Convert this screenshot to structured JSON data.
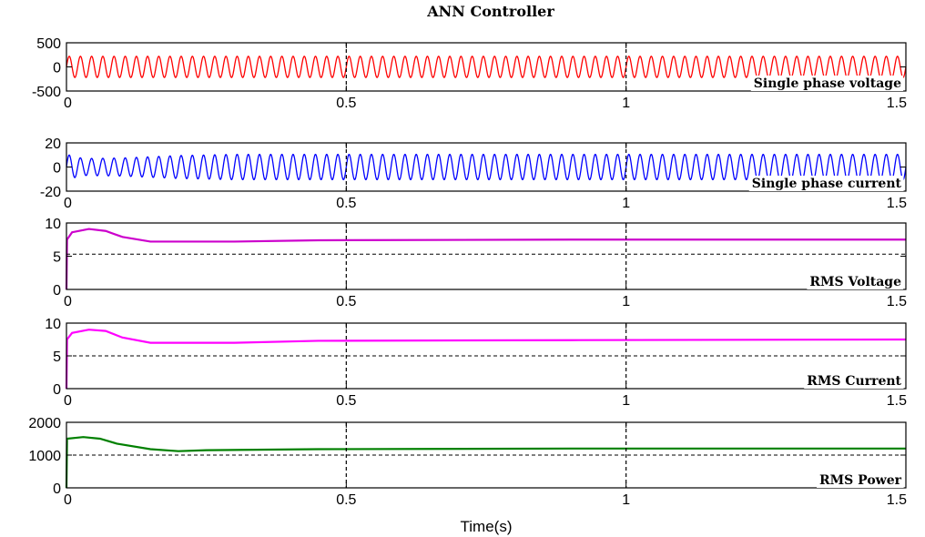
{
  "chart_data": {
    "type": "line",
    "title": "ANN Controller",
    "xlabel": "Time(s)",
    "xlim": [
      0,
      1.5
    ],
    "x_ticks": [
      "0",
      "0.5",
      "1",
      "1.5"
    ],
    "subplots": [
      {
        "id": "voltage",
        "label": "Single phase voltage",
        "color": "#ff0000",
        "ylim": [
          -500,
          500
        ],
        "y_ticks": [
          "500",
          "0",
          "-500"
        ],
        "y_tick_values": [
          500,
          0,
          -500
        ],
        "dashed_hlines": [],
        "signal": {
          "kind": "sine",
          "amplitude": 220,
          "cycles": 75,
          "mean": 0
        }
      },
      {
        "id": "current",
        "label": "Single phase current",
        "color": "#0000ff",
        "ylim": [
          -20,
          20
        ],
        "y_ticks": [
          "20",
          "0",
          "-20"
        ],
        "y_tick_values": [
          20,
          0,
          -20
        ],
        "dashed_hlines": [],
        "signal": {
          "kind": "sine",
          "amplitude": 10.5,
          "cycles": 75,
          "mean": 0,
          "envelope": [
            [
              0,
              10.5
            ],
            [
              0.03,
              7
            ],
            [
              0.1,
              7.5
            ],
            [
              0.2,
              9.5
            ],
            [
              0.3,
              10.5
            ],
            [
              1.5,
              10.5
            ]
          ]
        }
      },
      {
        "id": "rms_voltage",
        "label": "RMS Voltage",
        "color": "#cc00cc",
        "ylim": [
          0,
          10
        ],
        "y_ticks": [
          "10",
          "5",
          "0"
        ],
        "y_tick_values": [
          10,
          5,
          0
        ],
        "dashed_hlines": [
          5.3
        ],
        "signal": {
          "kind": "points",
          "points": [
            [
              0,
              0
            ],
            [
              0.001,
              7.5
            ],
            [
              0.01,
              8.6
            ],
            [
              0.04,
              9.1
            ],
            [
              0.07,
              8.8
            ],
            [
              0.1,
              7.9
            ],
            [
              0.15,
              7.2
            ],
            [
              0.3,
              7.2
            ],
            [
              0.45,
              7.4
            ],
            [
              0.9,
              7.5
            ],
            [
              1.5,
              7.5
            ]
          ]
        }
      },
      {
        "id": "rms_current",
        "label": "RMS Current",
        "color": "#ff00ff",
        "ylim": [
          0,
          10
        ],
        "y_ticks": [
          "10",
          "5",
          "0"
        ],
        "y_tick_values": [
          10,
          5,
          0
        ],
        "dashed_hlines": [
          5
        ],
        "signal": {
          "kind": "points",
          "points": [
            [
              0,
              0
            ],
            [
              0.001,
              7.5
            ],
            [
              0.01,
              8.5
            ],
            [
              0.04,
              9.0
            ],
            [
              0.07,
              8.8
            ],
            [
              0.1,
              7.8
            ],
            [
              0.15,
              7.0
            ],
            [
              0.3,
              7.0
            ],
            [
              0.45,
              7.3
            ],
            [
              0.9,
              7.4
            ],
            [
              1.5,
              7.5
            ]
          ]
        }
      },
      {
        "id": "rms_power",
        "label": "RMS Power",
        "color": "#008000",
        "ylim": [
          0,
          2000
        ],
        "y_ticks": [
          "2000",
          "1000",
          "0"
        ],
        "y_tick_values": [
          2000,
          1000,
          0
        ],
        "dashed_hlines": [
          1000
        ],
        "signal": {
          "kind": "points",
          "points": [
            [
              0,
              0
            ],
            [
              0.001,
              1500
            ],
            [
              0.03,
              1550
            ],
            [
              0.06,
              1500
            ],
            [
              0.09,
              1350
            ],
            [
              0.15,
              1180
            ],
            [
              0.2,
              1120
            ],
            [
              0.25,
              1150
            ],
            [
              0.45,
              1180
            ],
            [
              0.9,
              1200
            ],
            [
              1.5,
              1200
            ]
          ]
        }
      }
    ],
    "vertical_dashed_lines": [
      0.5,
      1.0
    ]
  }
}
